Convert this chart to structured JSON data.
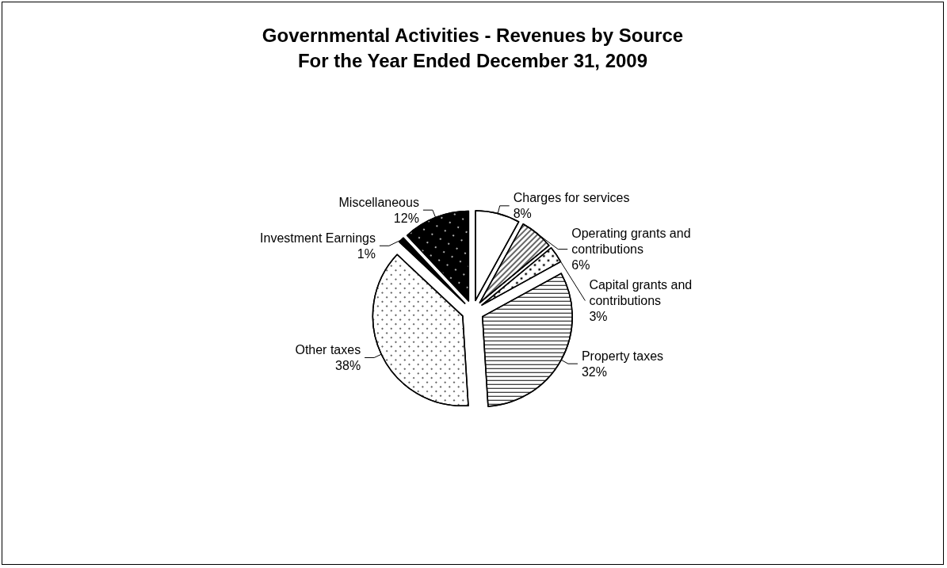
{
  "chart_data": {
    "type": "pie",
    "title": "Governmental Activities - Revenues by Source",
    "subtitle": "For the Year Ended December 31, 2009",
    "categories": [
      "Charges for services",
      "Operating grants and contributions",
      "Capital grants and contributions",
      "Property taxes",
      "Other taxes",
      "Investment Earnings",
      "Miscellaneous"
    ],
    "values": [
      8,
      6,
      3,
      32,
      38,
      1,
      12
    ],
    "value_labels": [
      "8%",
      "6%",
      "3%",
      "32%",
      "38%",
      "1%",
      "12%"
    ],
    "colors": [
      "#ffffff",
      "#ffffff",
      "#ffffff",
      "#ffffff",
      "#ffffff",
      "#000000",
      "#000000"
    ],
    "legend": false
  }
}
